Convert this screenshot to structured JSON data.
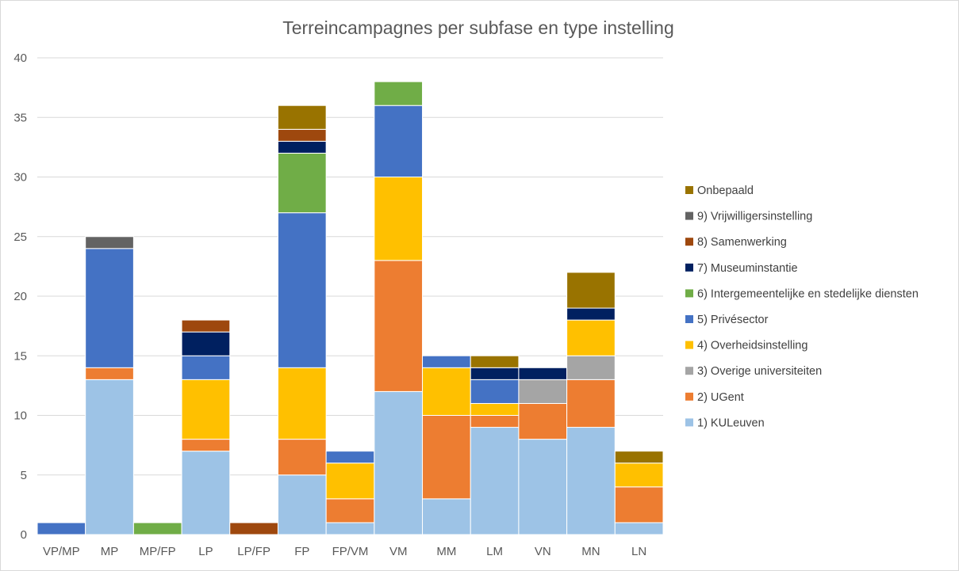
{
  "chart_data": {
    "type": "bar",
    "stacked": true,
    "title": "Terreincampagnes per subfase en type instelling",
    "xlabel": "",
    "ylabel": "",
    "ylim": [
      0,
      40
    ],
    "yticks": [
      0,
      5,
      10,
      15,
      20,
      25,
      30,
      35,
      40
    ],
    "grid": true,
    "legend": "right",
    "categories": [
      "VP/MP",
      "MP",
      "MP/FP",
      "LP",
      "LP/FP",
      "FP",
      "FP/VM",
      "VM",
      "MM",
      "LM",
      "VN",
      "MN",
      "LN"
    ],
    "series": [
      {
        "name": "1) KULeuven",
        "color": "#9DC3E6",
        "values": [
          0,
          13,
          0,
          7,
          0,
          5,
          1,
          12,
          3,
          9,
          8,
          9,
          1
        ]
      },
      {
        "name": "2) UGent",
        "color": "#ED7D31",
        "values": [
          0,
          1,
          0,
          1,
          0,
          3,
          2,
          11,
          7,
          1,
          3,
          4,
          3
        ]
      },
      {
        "name": "3) Overige universiteiten",
        "color": "#A5A5A5",
        "values": [
          0,
          0,
          0,
          0,
          0,
          0,
          0,
          0,
          0,
          0,
          2,
          2,
          0
        ]
      },
      {
        "name": "4) Overheidsinstelling",
        "color": "#FFC000",
        "values": [
          0,
          0,
          0,
          5,
          0,
          6,
          3,
          7,
          4,
          1,
          0,
          3,
          2
        ]
      },
      {
        "name": "5) Privésector",
        "color": "#4472C4",
        "values": [
          1,
          10,
          0,
          2,
          0,
          13,
          1,
          6,
          1,
          2,
          0,
          0,
          0
        ]
      },
      {
        "name": "6) Intergemeentelijke en stedelijke diensten",
        "color": "#70AD47",
        "values": [
          0,
          0,
          1,
          0,
          0,
          5,
          0,
          2,
          0,
          0,
          0,
          0,
          0
        ]
      },
      {
        "name": "7) Museuminstantie",
        "color": "#002060",
        "values": [
          0,
          0,
          0,
          2,
          0,
          1,
          0,
          0,
          0,
          1,
          1,
          1,
          0
        ]
      },
      {
        "name": "8) Samenwerking",
        "color": "#9E480E",
        "values": [
          0,
          0,
          0,
          1,
          1,
          1,
          0,
          0,
          0,
          0,
          0,
          0,
          0
        ]
      },
      {
        "name": "9) Vrijwilligersinstelling",
        "color": "#636363",
        "values": [
          0,
          1,
          0,
          0,
          0,
          0,
          0,
          0,
          0,
          0,
          0,
          0,
          0
        ]
      },
      {
        "name": "Onbepaald",
        "color": "#997300",
        "values": [
          0,
          0,
          0,
          0,
          0,
          2,
          0,
          0,
          0,
          1,
          0,
          3,
          1
        ]
      }
    ]
  }
}
